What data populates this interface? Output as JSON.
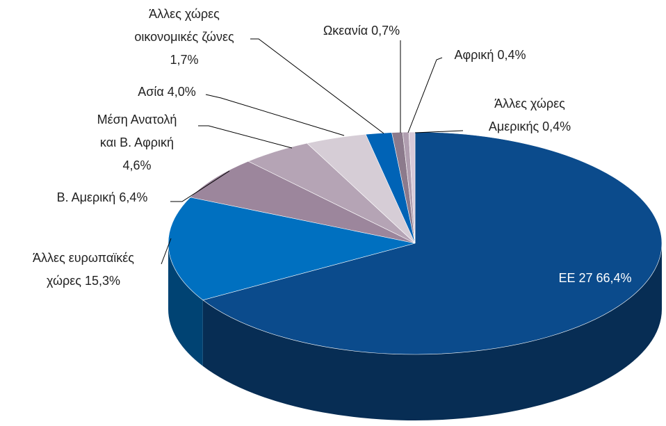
{
  "chart_data": {
    "type": "pie",
    "categories": [
      "ΕΕ 27",
      "Άλλες ευρωπαϊκές χώρες",
      "Β. Αμερική",
      "Μέση Ανατολή και Β. Αφρική",
      "Ασία",
      "Άλλες χώρες οικονομικές ζώνες",
      "Ωκεανία",
      "Αφρική",
      "Άλλες χώρες Αμερικής"
    ],
    "values": [
      66.4,
      15.3,
      6.4,
      4.6,
      4.0,
      1.7,
      0.7,
      0.4,
      0.4
    ],
    "value_labels": [
      "66,4%",
      "15,3%",
      "6,4%",
      "4,6%",
      "4,0%",
      "1,7%",
      "0,7%",
      "0,4%",
      "0,4%"
    ],
    "colors": [
      "#0b4b8c",
      "#0070c0",
      "#9c869c",
      "#b5a4b5",
      "#d6cdd6",
      "#0063b6",
      "#8c7a8c",
      "#b09eb0",
      "#d8c9d8"
    ]
  }
}
